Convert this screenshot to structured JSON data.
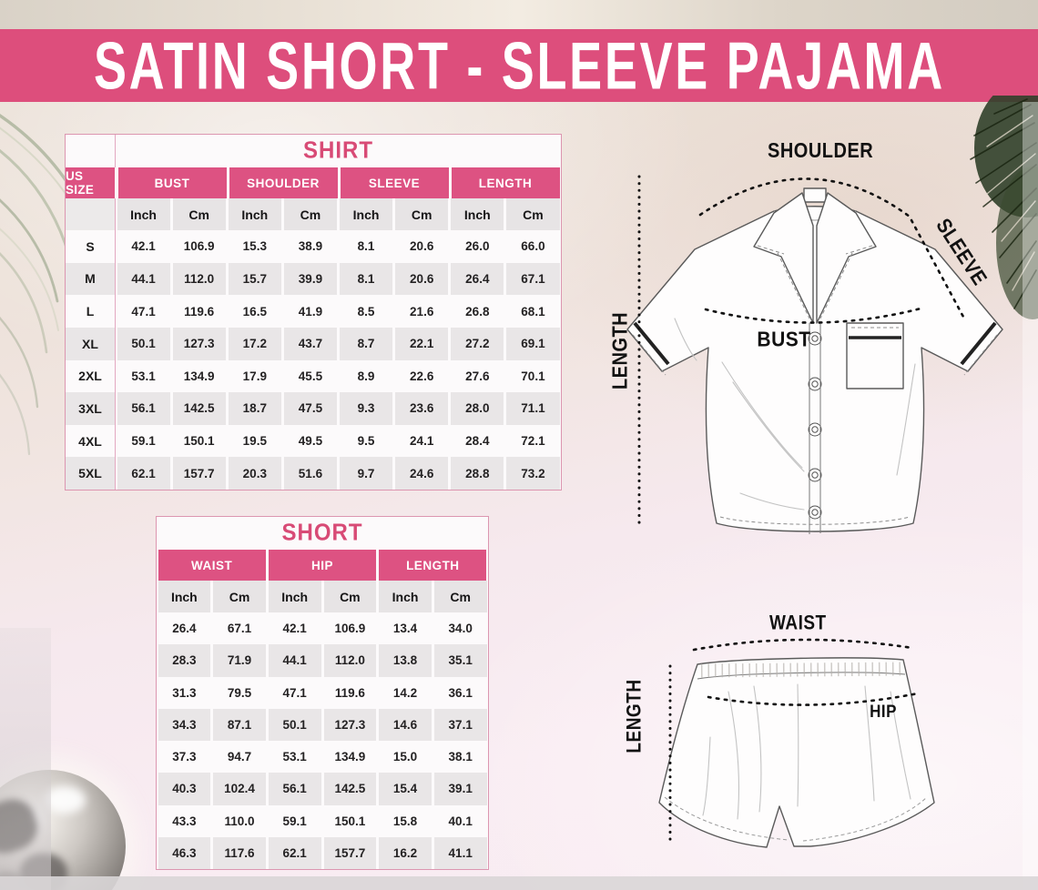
{
  "banner": {
    "title": "SATIN SHORT - SLEEVE PAJAMA"
  },
  "shirt_table": {
    "title": "SHIRT",
    "size_header": "US SIZE",
    "groups": [
      "BUST",
      "SHOULDER",
      "SLEEVE",
      "LENGTH"
    ],
    "unit_headers": [
      "Inch",
      "Cm",
      "Inch",
      "Cm",
      "Inch",
      "Cm",
      "Inch",
      "Cm"
    ],
    "rows": [
      {
        "size": "S",
        "values": [
          "42.1",
          "106.9",
          "15.3",
          "38.9",
          "8.1",
          "20.6",
          "26.0",
          "66.0"
        ]
      },
      {
        "size": "M",
        "values": [
          "44.1",
          "112.0",
          "15.7",
          "39.9",
          "8.1",
          "20.6",
          "26.4",
          "67.1"
        ]
      },
      {
        "size": "L",
        "values": [
          "47.1",
          "119.6",
          "16.5",
          "41.9",
          "8.5",
          "21.6",
          "26.8",
          "68.1"
        ]
      },
      {
        "size": "XL",
        "values": [
          "50.1",
          "127.3",
          "17.2",
          "43.7",
          "8.7",
          "22.1",
          "27.2",
          "69.1"
        ]
      },
      {
        "size": "2XL",
        "values": [
          "53.1",
          "134.9",
          "17.9",
          "45.5",
          "8.9",
          "22.6",
          "27.6",
          "70.1"
        ]
      },
      {
        "size": "3XL",
        "values": [
          "56.1",
          "142.5",
          "18.7",
          "47.5",
          "9.3",
          "23.6",
          "28.0",
          "71.1"
        ]
      },
      {
        "size": "4XL",
        "values": [
          "59.1",
          "150.1",
          "19.5",
          "49.5",
          "9.5",
          "24.1",
          "28.4",
          "72.1"
        ]
      },
      {
        "size": "5XL",
        "values": [
          "62.1",
          "157.7",
          "20.3",
          "51.6",
          "9.7",
          "24.6",
          "28.8",
          "73.2"
        ]
      }
    ]
  },
  "short_table": {
    "title": "SHORT",
    "groups": [
      "WAIST",
      "HIP",
      "LENGTH"
    ],
    "unit_headers": [
      "Inch",
      "Cm",
      "Inch",
      "Cm",
      "Inch",
      "Cm"
    ],
    "rows": [
      [
        "26.4",
        "67.1",
        "42.1",
        "106.9",
        "13.4",
        "34.0"
      ],
      [
        "28.3",
        "71.9",
        "44.1",
        "112.0",
        "13.8",
        "35.1"
      ],
      [
        "31.3",
        "79.5",
        "47.1",
        "119.6",
        "14.2",
        "36.1"
      ],
      [
        "34.3",
        "87.1",
        "50.1",
        "127.3",
        "14.6",
        "37.1"
      ],
      [
        "37.3",
        "94.7",
        "53.1",
        "134.9",
        "15.0",
        "38.1"
      ],
      [
        "40.3",
        "102.4",
        "56.1",
        "142.5",
        "15.4",
        "39.1"
      ],
      [
        "43.3",
        "110.0",
        "59.1",
        "150.1",
        "15.8",
        "40.1"
      ],
      [
        "46.3",
        "117.6",
        "62.1",
        "157.7",
        "16.2",
        "41.1"
      ]
    ]
  },
  "shirt_diagram": {
    "labels": {
      "shoulder": "SHOULDER",
      "sleeve": "SLEEVE",
      "length": "LENGTH",
      "bust": "BUST"
    }
  },
  "shorts_diagram": {
    "labels": {
      "waist": "WAIST",
      "length": "LENGTH",
      "hip": "HIP"
    }
  },
  "colors": {
    "banner_pink": "#dd4e7c",
    "table_header_pink": "#dd5282",
    "title_pink": "#d84b76",
    "zebra_gray": "#e9e6e7",
    "unit_gray": "#e7e4e5",
    "background_cream": "#ece1d8",
    "background_pink": "#f8ebf1"
  }
}
